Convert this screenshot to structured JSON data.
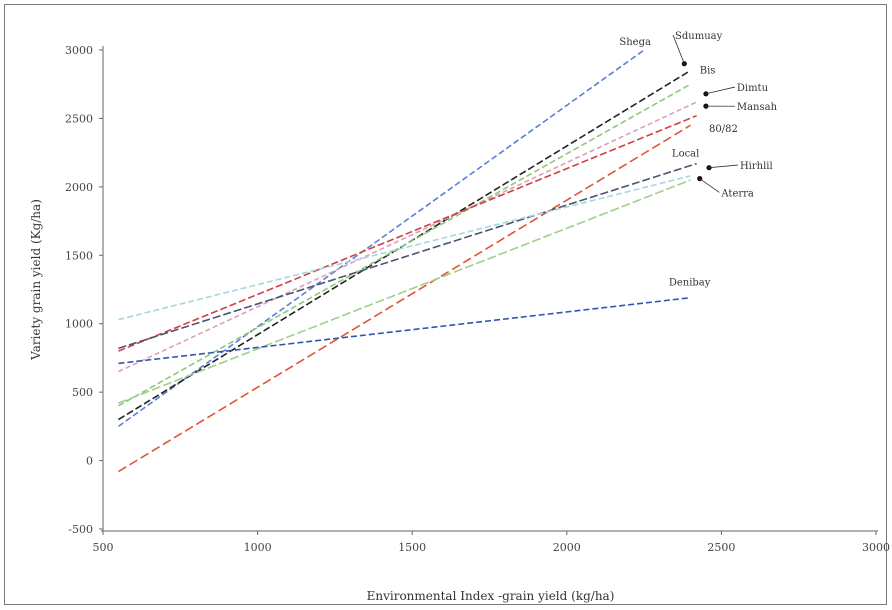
{
  "chart_data": {
    "type": "line",
    "title": "",
    "xlabel": "Environmental Index -grain yield (kg/ha)",
    "ylabel": "Variety grain yield (Kg/ha)",
    "xlim": [
      500,
      3000
    ],
    "ylim": [
      -500,
      3000
    ],
    "xticks": [
      500,
      1000,
      1500,
      2000,
      2500,
      3000
    ],
    "yticks": [
      -500,
      0,
      500,
      1000,
      1500,
      2000,
      2500,
      3000
    ],
    "grid": false,
    "series": [
      {
        "name": "Shega",
        "color": "#5b7fd6",
        "dash": "6,3",
        "x": [
          550,
          2250
        ],
        "y": [
          250,
          3000
        ]
      },
      {
        "name": "Sdumuay",
        "color": "#222222",
        "dash": "7,3",
        "x": [
          550,
          2400
        ],
        "y": [
          300,
          2850
        ]
      },
      {
        "name": "Bis",
        "color": "#8cc97a",
        "dash": "6,3",
        "x": [
          550,
          2400
        ],
        "y": [
          400,
          2750
        ]
      },
      {
        "name": "Dimtu",
        "color": "#d9a0b8",
        "dash": "5,3",
        "x": [
          550,
          2420
        ],
        "y": [
          650,
          2620
        ]
      },
      {
        "name": "Mansah",
        "color": "#d04040",
        "dash": "7,3",
        "x": [
          550,
          2420
        ],
        "y": [
          800,
          2520
        ]
      },
      {
        "name": "80/82",
        "color": "#e05535",
        "dash": "9,4",
        "x": [
          550,
          2400
        ],
        "y": [
          -80,
          2450
        ]
      },
      {
        "name": "Local",
        "color": "#4a5470",
        "dash": "8,3",
        "x": [
          550,
          2420
        ],
        "y": [
          820,
          2170
        ]
      },
      {
        "name": "Hirhlil",
        "color": "#a8d6e0",
        "dash": "6,3",
        "x": [
          550,
          2400
        ],
        "y": [
          1030,
          2080
        ]
      },
      {
        "name": "Aterra",
        "color": "#9fd08a",
        "dash": "9,3",
        "x": [
          550,
          2400
        ],
        "y": [
          420,
          2050
        ]
      },
      {
        "name": "Denibay",
        "color": "#3355b0",
        "dash": "6,3",
        "x": [
          550,
          2400
        ],
        "y": [
          710,
          1190
        ]
      }
    ],
    "annotations": [
      {
        "text": "Shega",
        "x": 2170,
        "y": 3035,
        "marker": false
      },
      {
        "text": "Sdumuay",
        "x": 2350,
        "y": 3080,
        "marker": true,
        "mx": 2380,
        "my": 2900
      },
      {
        "text": "Bis",
        "x": 2430,
        "y": 2830,
        "marker": false
      },
      {
        "text": "Dimtu",
        "x": 2550,
        "y": 2700,
        "marker": true,
        "mx": 2450,
        "my": 2680
      },
      {
        "text": "Mansah",
        "x": 2550,
        "y": 2560,
        "marker": true,
        "mx": 2450,
        "my": 2590
      },
      {
        "text": "80/82",
        "x": 2460,
        "y": 2400,
        "marker": false
      },
      {
        "text": "Local",
        "x": 2340,
        "y": 2220,
        "marker": false
      },
      {
        "text": "Hirhlil",
        "x": 2560,
        "y": 2130,
        "marker": true,
        "mx": 2460,
        "my": 2140
      },
      {
        "text": "Aterra",
        "x": 2500,
        "y": 1930,
        "marker": true,
        "mx": 2430,
        "my": 2060
      },
      {
        "text": "Denibay",
        "x": 2330,
        "y": 1280,
        "marker": false
      }
    ]
  }
}
